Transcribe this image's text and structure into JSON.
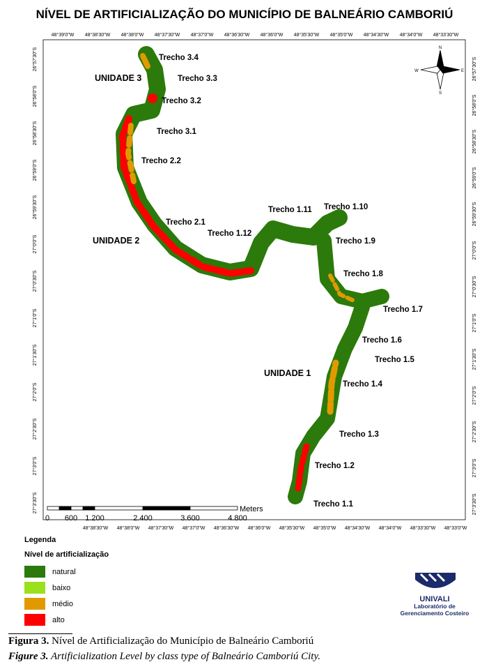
{
  "title": "NÍVEL DE ARTIFICIALIZAÇÃO  DO MUNICÍPIO DE BALNEÁRIO CAMBORIÚ",
  "map": {
    "top_longitudes": [
      "48°39'0\"W",
      "48°38'30\"W",
      "48°38'0\"W",
      "48°37'30\"W",
      "48°37'0\"W",
      "48°36'30\"W",
      "48°36'0\"W",
      "48°35'30\"W",
      "48°35'0\"W",
      "48°34'30\"W",
      "48°34'0\"W",
      "48°33'30\"W"
    ],
    "bottom_longitudes": [
      "48°38'30\"W",
      "48°38'0\"W",
      "48°37'30\"W",
      "48°37'0\"W",
      "48°36'30\"W",
      "48°36'0\"W",
      "48°35'30\"W",
      "48°35'0\"W",
      "48°34'30\"W",
      "48°34'0\"W",
      "48°33'30\"W",
      "48°33'0\"W"
    ],
    "left_latitudes": [
      "26°57'30\"S",
      "26°58'0\"S",
      "26°58'30\"S",
      "26°59'0\"S",
      "26°59'30\"S",
      "27°0'0\"S",
      "27°0'30\"S",
      "27°1'0\"S",
      "27°1'30\"S",
      "27°2'0\"S",
      "27°2'30\"S",
      "27°3'0\"S",
      "27°3'30\"S"
    ],
    "right_latitudes": [
      "26°57'30\"S",
      "26°58'0\"S",
      "26°58'30\"S",
      "26°59'0\"S",
      "26°59'30\"S",
      "27°0'0\"S",
      "27°0'30\"S",
      "27°1'0\"S",
      "27°1'30\"S",
      "27°2'0\"S",
      "27°2'30\"S",
      "27°3'0\"S",
      "27°3'30\"S"
    ],
    "units": [
      "UNIDADE 3",
      "UNIDADE 2",
      "UNIDADE 1"
    ],
    "segments": [
      "Trecho 3.4",
      "Trecho 3.3",
      "Trecho 3.2",
      "Trecho 3.1",
      "Trecho 2.2",
      "Trecho 2.1",
      "Trecho 1.12",
      "Trecho 1.11",
      "Trecho 1.10",
      "Trecho 1.9",
      "Trecho 1.8",
      "Trecho 1.7",
      "Trecho 1.6",
      "Trecho 1.5",
      "Trecho 1.4",
      "Trecho 1.3",
      "Trecho 1.2",
      "Trecho 1.1"
    ],
    "compass": [
      "N",
      "S",
      "W",
      "E"
    ],
    "scale": {
      "labels": [
        "0",
        "600",
        "1.200",
        "2.400",
        "3.600",
        "4.800"
      ],
      "unit": "Meters"
    }
  },
  "legend": {
    "title": "Legenda",
    "subtitle": "Nível de artificialização",
    "items": [
      {
        "label": "natural",
        "color": "#2b7a0b"
      },
      {
        "label": "baixo",
        "color": "#9be01c"
      },
      {
        "label": "médio",
        "color": "#e09a00"
      },
      {
        "label": "alto",
        "color": "#ff0000"
      }
    ]
  },
  "logo": {
    "name": "UNIVALI",
    "lines": [
      "Laboratório de",
      "Gerenciamento Costeiro"
    ]
  },
  "caption": {
    "pt_label": "Figura 3.",
    "pt_text": "Nível de Artificialização do Município de Balneário Camboriú",
    "en_label": "Figure 3.",
    "en_text": "Artificialization Level by class type of Balneário Camboriú City."
  }
}
